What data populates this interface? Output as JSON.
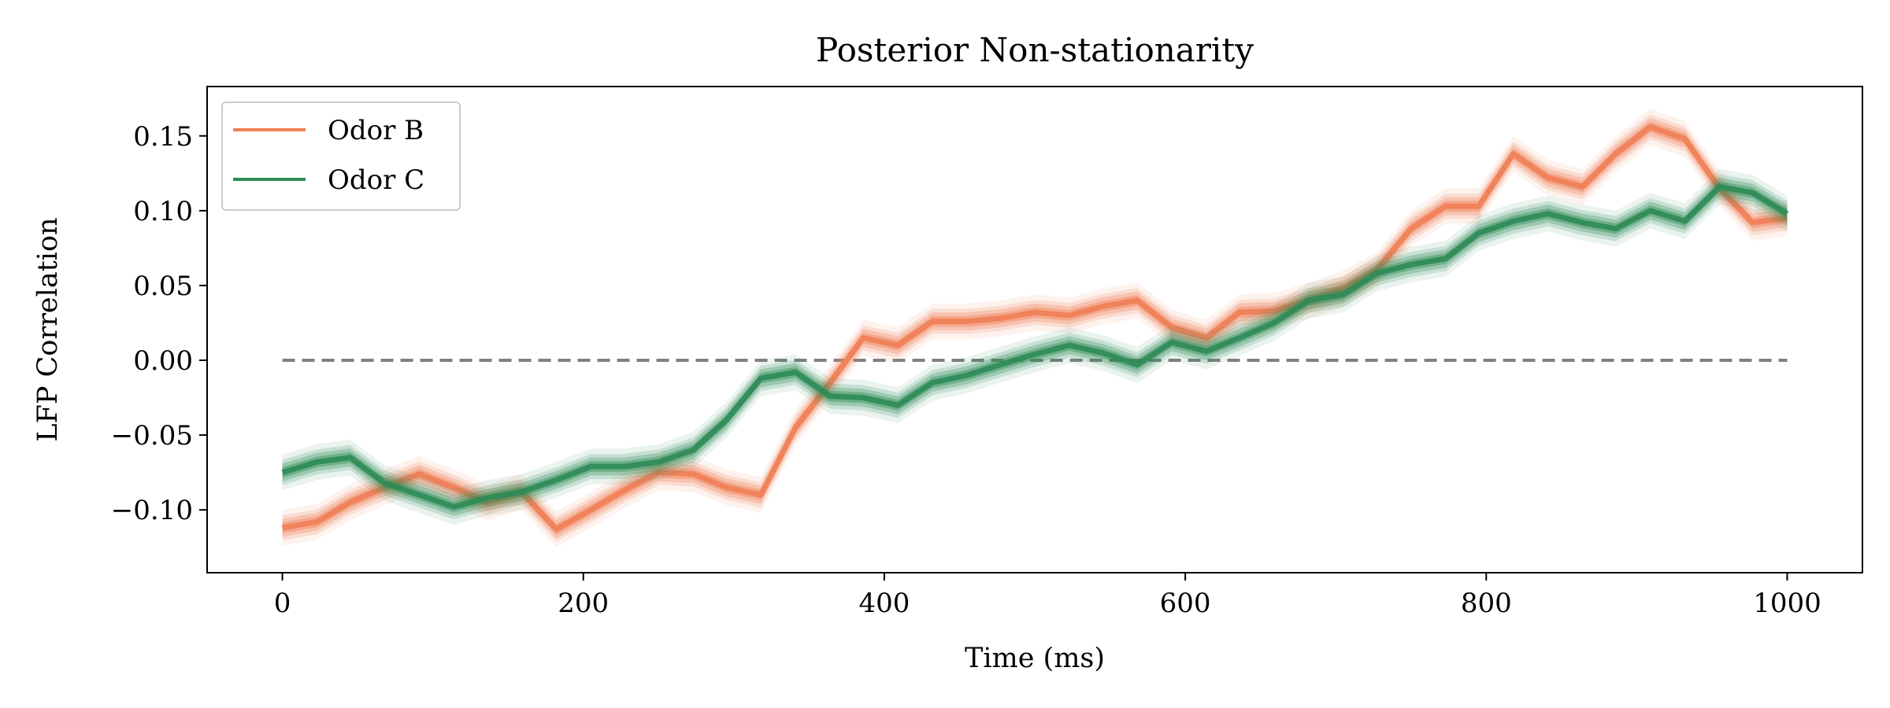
{
  "chart_data": {
    "type": "line",
    "title": "Posterior Non-stationarity",
    "xlabel": "Time (ms)",
    "ylabel": "LFP Correlation",
    "xlim": [
      -50,
      1050
    ],
    "ylim": [
      -0.142,
      0.183
    ],
    "xticks": [
      0,
      200,
      400,
      600,
      800,
      1000
    ],
    "xtick_labels": [
      "0",
      "200",
      "400",
      "600",
      "800",
      "1000"
    ],
    "yticks": [
      -0.1,
      -0.05,
      0.0,
      0.05,
      0.1,
      0.15
    ],
    "ytick_labels": [
      "−0.10",
      "−0.05",
      "0.00",
      "0.05",
      "0.10",
      "0.15"
    ],
    "grid": false,
    "legend_position": "top-left",
    "reference_line": {
      "y": 0.0,
      "style": "dashed",
      "color": "#808080",
      "x_range": [
        0,
        1000
      ]
    },
    "series": [
      {
        "name": "Odor B",
        "color": "#f07f55",
        "band_halfwidth": 0.006,
        "x": [
          0,
          23,
          45,
          68,
          91,
          114,
          136,
          159,
          182,
          205,
          227,
          250,
          273,
          295,
          318,
          341,
          364,
          386,
          409,
          432,
          455,
          477,
          500,
          523,
          545,
          568,
          591,
          614,
          636,
          659,
          682,
          705,
          727,
          750,
          773,
          795,
          818,
          841,
          864,
          886,
          909,
          932,
          955,
          977,
          1000
        ],
        "y": [
          -0.112,
          -0.108,
          -0.095,
          -0.085,
          -0.076,
          -0.085,
          -0.095,
          -0.088,
          -0.113,
          -0.1,
          -0.087,
          -0.075,
          -0.076,
          -0.085,
          -0.09,
          -0.045,
          -0.015,
          0.015,
          0.01,
          0.026,
          0.026,
          0.028,
          0.032,
          0.03,
          0.036,
          0.04,
          0.022,
          0.015,
          0.032,
          0.033,
          0.04,
          0.048,
          0.06,
          0.088,
          0.103,
          0.103,
          0.138,
          0.122,
          0.116,
          0.138,
          0.156,
          0.148,
          0.115,
          0.092,
          0.095
        ]
      },
      {
        "name": "Odor C",
        "color": "#2e8b57",
        "band_halfwidth": 0.006,
        "x": [
          0,
          23,
          45,
          68,
          91,
          114,
          136,
          159,
          182,
          205,
          227,
          250,
          273,
          295,
          318,
          341,
          364,
          386,
          409,
          432,
          455,
          477,
          500,
          523,
          545,
          568,
          591,
          614,
          636,
          659,
          682,
          705,
          727,
          750,
          773,
          795,
          818,
          841,
          864,
          886,
          909,
          932,
          955,
          977,
          1000
        ],
        "y": [
          -0.075,
          -0.068,
          -0.065,
          -0.082,
          -0.09,
          -0.098,
          -0.092,
          -0.088,
          -0.08,
          -0.071,
          -0.071,
          -0.068,
          -0.06,
          -0.04,
          -0.012,
          -0.008,
          -0.024,
          -0.025,
          -0.03,
          -0.015,
          -0.01,
          -0.003,
          0.004,
          0.01,
          0.005,
          -0.003,
          0.012,
          0.006,
          0.015,
          0.025,
          0.04,
          0.044,
          0.058,
          0.064,
          0.068,
          0.085,
          0.093,
          0.098,
          0.092,
          0.088,
          0.1,
          0.093,
          0.116,
          0.112,
          0.098
        ]
      }
    ]
  }
}
